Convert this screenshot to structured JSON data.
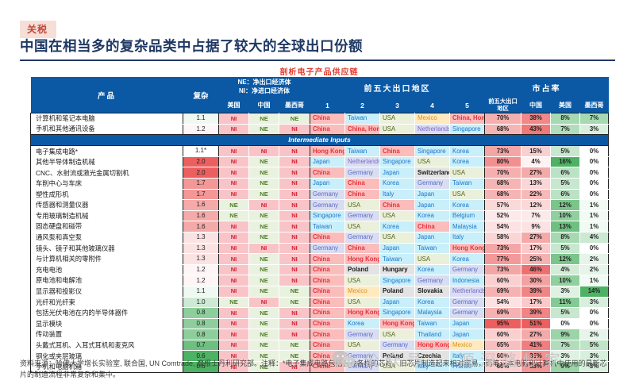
{
  "tag": "关税",
  "title": "中国在相当多的复杂品类中占据了较大的全球出口份额",
  "caption": "剖析电子产品供应链",
  "table": {
    "header": {
      "product": "产品",
      "complexity": "复杂",
      "legend_ne": "NE：净出口经济体",
      "legend_ni": "NI：净进口经济体",
      "econ_cols": [
        "美国",
        "中国",
        "墨西哥"
      ],
      "top5_title": "前五大出口地区",
      "rank_cols": [
        "1",
        "2",
        "3",
        "4",
        "5"
      ],
      "share_title": "市占率",
      "share_cols": [
        "前五大出口地区",
        "中国",
        "美国",
        "墨西哥"
      ]
    },
    "band_label": "Intermediate Inputs",
    "final_rows": [
      {
        "name": "计算机和笔记本电脑",
        "cx": "1.1",
        "cx_v": 1.1,
        "econ": [
          "NI",
          "NE",
          "NE"
        ],
        "top5": [
          "China",
          "Taiwan",
          "USA",
          "Mexico",
          "China, Hong Kong"
        ],
        "share": [
          70,
          38,
          8,
          7
        ]
      },
      {
        "name": "手机和其他通讯设备",
        "cx": "1.2",
        "cx_v": 1.2,
        "econ": [
          "NI",
          "NE",
          "NI"
        ],
        "top5": [
          "China",
          "China, Hong Kong",
          "USA",
          "Netherlands",
          "Singapore"
        ],
        "share": [
          68,
          43,
          7,
          3
        ]
      }
    ],
    "intermediate_rows": [
      {
        "name": "电子集成电路*",
        "cx": "1.1*",
        "cx_v": 1.15,
        "econ": [
          "NI",
          "NI",
          "NI"
        ],
        "top5": [
          "Hong Kong",
          "Taiwan",
          "China",
          "Singapore",
          "Korea"
        ],
        "share": [
          73,
          15,
          5,
          0
        ]
      },
      {
        "name": "其他半导体制造机械",
        "cx": "2.0",
        "cx_v": 2.0,
        "econ": [
          "NI",
          "NE",
          "NI"
        ],
        "top5": [
          "Japan",
          "Netherlands",
          "Singapore",
          "USA",
          "Korea"
        ],
        "share": [
          80,
          4,
          16,
          0
        ]
      },
      {
        "name": "CNC、水射流或激光金属切割机",
        "cx": "2.0",
        "cx_v": 2.0,
        "econ": [
          "NI",
          "NE",
          "NI"
        ],
        "top5": [
          "China",
          "Germany",
          "Japan",
          "Switzerland",
          "USA"
        ],
        "share": [
          70,
          27,
          6,
          0
        ]
      },
      {
        "name": "车削中心与车床",
        "cx": "1.7",
        "cx_v": 1.7,
        "econ": [
          "NI",
          "NE",
          "NI"
        ],
        "top5": [
          "Japan",
          "China",
          "Korea",
          "Germany",
          "Taiwan"
        ],
        "share": [
          68,
          13,
          5,
          0
        ]
      },
      {
        "name": "塑性成形机",
        "cx": "1.7",
        "cx_v": 1.7,
        "econ": [
          "NI",
          "NE",
          "NI"
        ],
        "top5": [
          "Germany",
          "China",
          "Italy",
          "Japan",
          "USA"
        ],
        "share": [
          68,
          22,
          6,
          0
        ]
      },
      {
        "name": "传感器和测量仪器",
        "cx": "1.6",
        "cx_v": 1.6,
        "econ": [
          "NE",
          "NI",
          "NI"
        ],
        "top5": [
          "Germany",
          "USA",
          "China",
          "Japan",
          "Korea"
        ],
        "share": [
          57,
          12,
          12,
          1
        ]
      },
      {
        "name": "专用玻璃制造机械",
        "cx": "1.6",
        "cx_v": 1.6,
        "econ": [
          "NE",
          "NE",
          "NI"
        ],
        "top5": [
          "Singapore",
          "Germany",
          "USA",
          "Korea",
          "Belgium"
        ],
        "share": [
          52,
          7,
          10,
          1
        ]
      },
      {
        "name": "固态硬盘和磁带",
        "cx": "1.6",
        "cx_v": 1.6,
        "econ": [
          "NI",
          "NE",
          "NI"
        ],
        "top5": [
          "Taiwan",
          "USA",
          "Korea",
          "China",
          "Malaysia"
        ],
        "share": [
          54,
          9,
          13,
          1
        ]
      },
      {
        "name": "通风泵和真空泵",
        "cx": "1.3",
        "cx_v": 1.3,
        "econ": [
          "NI",
          "NE",
          "NI"
        ],
        "top5": [
          "China",
          "Germany",
          "USA",
          "Japan",
          "Italy"
        ],
        "share": [
          58,
          27,
          8,
          4
        ]
      },
      {
        "name": "镜头、镜子和其他玻璃仪器",
        "cx": "1.3",
        "cx_v": 1.3,
        "econ": [
          "NI",
          "NI",
          "NI"
        ],
        "top5": [
          "Germany",
          "China",
          "Japan",
          "Taiwan",
          "Hong Kong"
        ],
        "share": [
          73,
          17,
          5,
          0
        ]
      },
      {
        "name": "与计算机相关的零附件",
        "cx": "1.3",
        "cx_v": 1.3,
        "econ": [
          "NI",
          "NE",
          "NI"
        ],
        "top5": [
          "China",
          "Hong Kong",
          "Taiwan",
          "USA",
          "Korea"
        ],
        "share": [
          77,
          25,
          12,
          2
        ]
      },
      {
        "name": "充电电池",
        "cx": "1.2",
        "cx_v": 1.2,
        "econ": [
          "NI",
          "NE",
          "NI"
        ],
        "top5": [
          "China",
          "Poland",
          "Hungary",
          "Korea",
          "Germany"
        ],
        "share": [
          73,
          46,
          4,
          2
        ]
      },
      {
        "name": "原电池和电解池",
        "cx": "1.2",
        "cx_v": 1.2,
        "econ": [
          "NI",
          "NE",
          "NI"
        ],
        "top5": [
          "China",
          "USA",
          "Singapore",
          "Germany",
          "Indonesia"
        ],
        "share": [
          60,
          30,
          10,
          1
        ]
      },
      {
        "name": "显示器和投影仪",
        "cx": "1.1",
        "cx_v": 1.1,
        "econ": [
          "NI",
          "NE",
          "NE"
        ],
        "top5": [
          "China",
          "Mexico",
          "Poland",
          "Slovakia",
          "Netherlands"
        ],
        "share": [
          69,
          39,
          3,
          14
        ]
      },
      {
        "name": "光纤和光纤束",
        "cx": "1.0",
        "cx_v": 1.0,
        "econ": [
          "NE",
          "NI",
          "NE"
        ],
        "top5": [
          "China",
          "USA",
          "Japan",
          "Korea",
          "Germany"
        ],
        "share": [
          54,
          17,
          11,
          3
        ]
      },
      {
        "name": "包括光伏电池在内的半导体器件",
        "cx": "0.8",
        "cx_v": 0.8,
        "econ": [
          "NI",
          "NE",
          "NI"
        ],
        "top5": [
          "China",
          "Hong Kong",
          "Singapore",
          "Malaysia",
          "Germany"
        ],
        "share": [
          69,
          39,
          5,
          0
        ]
      },
      {
        "name": "显示模块",
        "cx": "0.8",
        "cx_v": 0.8,
        "econ": [
          "NI",
          "NE",
          "NI"
        ],
        "top5": [
          "China",
          "Korea",
          "Hong Kong",
          "Taiwan",
          "Japan"
        ],
        "share": [
          95,
          51,
          0,
          0
        ]
      },
      {
        "name": "传动装置",
        "cx": "0.8",
        "cx_v": 0.8,
        "econ": [
          "NI",
          "NE",
          "NI"
        ],
        "top5": [
          "China",
          "Germany",
          "USA",
          "Thailand",
          "Japan"
        ],
        "share": [
          60,
          27,
          9,
          2
        ]
      },
      {
        "name": "头戴式耳机、入耳式耳机和麦克风",
        "cx": "0.7",
        "cx_v": 0.7,
        "econ": [
          "NI",
          "NE",
          "NE"
        ],
        "top5": [
          "China",
          "USA",
          "Germany",
          "Hong Kong",
          "Mexico"
        ],
        "share": [
          65,
          41,
          7,
          5
        ]
      },
      {
        "name": "钢化或夹层玻璃",
        "cx": "0.6",
        "cx_v": 0.6,
        "econ": [
          "NI",
          "NE",
          "NE"
        ],
        "top5": [
          "China",
          "Germany",
          "Poland",
          "Czechia",
          "Italy"
        ],
        "share": [
          60,
          35,
          3,
          3
        ]
      },
      {
        "name": "手机和电脑机箱",
        "cx": "0.6",
        "cx_v": 0.6,
        "econ": [
          "NI",
          "NE",
          "NI"
        ],
        "top5": [
          "China",
          "Germany",
          "USA",
          "Italy",
          "France"
        ],
        "share": [
          60,
          33,
          9,
          3
        ]
      }
    ]
  },
  "footer": "资料来源：哈佛大学增长实验室, 联合国, UN Comtrade, 摩根士丹利研究部。注释：*电子集成电路包括各种各样的芯片，旧芯片制造起来相对容易，而笔记本电脑和计算机中使用的最新芯片的制造流程非常复杂和集中。",
  "watermark": "公众号 · 源深路炒家",
  "colors": {
    "header_blue": "#0b59a5",
    "title_navy": "#1f3864",
    "tag_red": "#c2473a",
    "tag_bg": "#f6dfd6",
    "caption_red": "#e23a2e",
    "scale_red_max": "#ec5f5f",
    "scale_green_max": "#4db263",
    "econ": {
      "NI": {
        "bg": "#f9c4c8",
        "fg": "#ce2030"
      },
      "NE": {
        "bg": "#e9f2df",
        "fg": "#4f7c2a"
      }
    },
    "countries": {
      "China": {
        "bg": "#fbbcbc",
        "fg": "#e4343c",
        "bold": true
      },
      "China, Hong Kong": {
        "bg": "#fbbcbc",
        "fg": "#e4343c",
        "bold": true
      },
      "Hong Kong": {
        "bg": "#fbbcbc",
        "fg": "#e4343c",
        "bold": true
      },
      "USA": {
        "bg": "#eaf0da",
        "fg": "#55651e",
        "bold": false
      },
      "Mexico": {
        "bg": "#ffe9be",
        "fg": "#d89220",
        "bold": false
      },
      "Taiwan": {
        "bg": "#c8effa",
        "fg": "#2076c8",
        "bold": false
      },
      "Singapore": {
        "bg": "#c8effa",
        "fg": "#2076c8",
        "bold": false
      },
      "Korea": {
        "bg": "#c8effa",
        "fg": "#2076c8",
        "bold": false
      },
      "Japan": {
        "bg": "#c8effa",
        "fg": "#2076c8",
        "bold": false
      },
      "Italy": {
        "bg": "#c8effa",
        "fg": "#2076c8",
        "bold": false
      },
      "Thailand": {
        "bg": "#c8effa",
        "fg": "#2076c8",
        "bold": false
      },
      "Indonesia": {
        "bg": "#c8effa",
        "fg": "#2076c8",
        "bold": false
      },
      "Belgium": {
        "bg": "#c8effa",
        "fg": "#2076c8",
        "bold": false
      },
      "Malaysia": {
        "bg": "#c8effa",
        "fg": "#2076c8",
        "bold": false
      },
      "France": {
        "bg": "#c8effa",
        "fg": "#2076c8",
        "bold": false
      },
      "Germany": {
        "bg": "#d9ddf2",
        "fg": "#5b6ac4",
        "bold": false
      },
      "Netherlands": {
        "bg": "#d9ddf2",
        "fg": "#7b68c8",
        "bold": false
      },
      "Switzerland": {
        "bg": "#e3e3e3",
        "fg": "#1a1a1a",
        "bold": true
      },
      "Poland": {
        "bg": "#e3e3e3",
        "fg": "#1a1a1a",
        "bold": true
      },
      "Hungary": {
        "bg": "#e3e3e3",
        "fg": "#1a1a1a",
        "bold": true
      },
      "Slovakia": {
        "bg": "#e3e3e3",
        "fg": "#1a1a1a",
        "bold": true
      },
      "Czechia": {
        "bg": "#e3e3e3",
        "fg": "#1a1a1a",
        "bold": true
      }
    }
  }
}
